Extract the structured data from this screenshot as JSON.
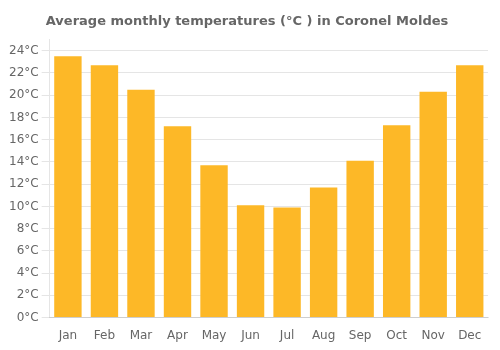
{
  "chart_data": {
    "type": "bar",
    "title": "Average monthly temperatures (°C ) in Coronel Moldes",
    "categories": [
      "Jan",
      "Feb",
      "Mar",
      "Apr",
      "May",
      "Jun",
      "Jul",
      "Aug",
      "Sep",
      "Oct",
      "Nov",
      "Dec"
    ],
    "values": [
      23.5,
      22.7,
      20.5,
      17.2,
      13.7,
      10.1,
      9.9,
      11.7,
      14.1,
      17.3,
      20.3,
      22.7
    ],
    "color": "#FDB827",
    "ylim": [
      0,
      25
    ],
    "yticks": [
      {
        "value": 0,
        "label": "0°C"
      },
      {
        "value": 2,
        "label": "2°C"
      },
      {
        "value": 4,
        "label": "4°C"
      },
      {
        "value": 6,
        "label": "6°C"
      },
      {
        "value": 8,
        "label": "8°C"
      },
      {
        "value": 10,
        "label": "10°C"
      },
      {
        "value": 12,
        "label": "12°C"
      },
      {
        "value": 14,
        "label": "14°C"
      },
      {
        "value": 16,
        "label": "16°C"
      },
      {
        "value": 18,
        "label": "18°C"
      },
      {
        "value": 20,
        "label": "20°C"
      },
      {
        "value": 22,
        "label": "22°C"
      },
      {
        "value": 24,
        "label": "24°C"
      }
    ],
    "grid": true
  }
}
